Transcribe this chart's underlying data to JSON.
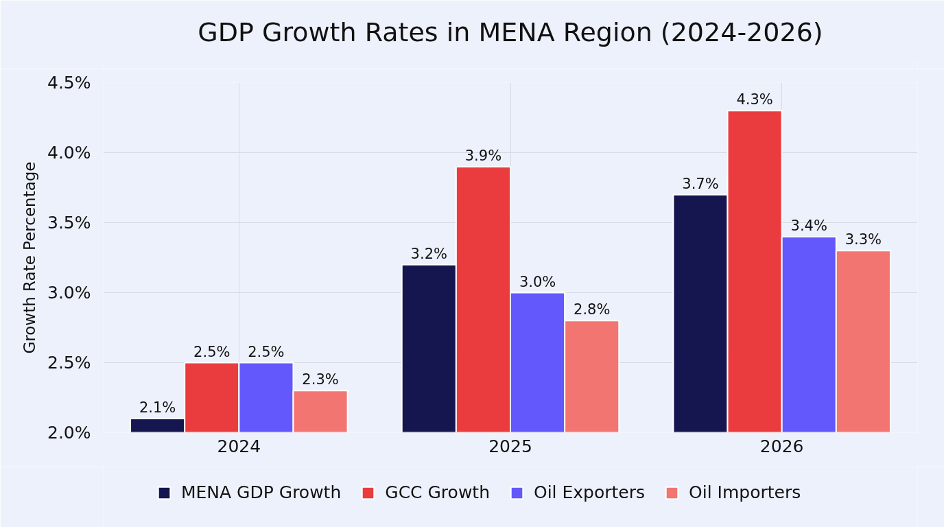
{
  "chart_data": {
    "type": "bar",
    "title": "GDP Growth Rates in MENA Region (2024-2026)",
    "ylabel": "Growth Rate Percentage",
    "categories": [
      "2024",
      "2025",
      "2026"
    ],
    "series": [
      {
        "name": "MENA GDP Growth",
        "color": "#151550",
        "values": [
          2.1,
          3.2,
          3.7
        ],
        "value_labels": [
          "2.1%",
          "3.2%",
          "3.7%"
        ]
      },
      {
        "name": "GCC Growth",
        "color": "#ea3c3f",
        "values": [
          2.5,
          3.9,
          4.3
        ],
        "value_labels": [
          "2.5%",
          "3.9%",
          "4.3%"
        ]
      },
      {
        "name": "Oil Exporters",
        "color": "#6258fc",
        "values": [
          2.5,
          3.0,
          3.4
        ],
        "value_labels": [
          "2.5%",
          "3.0%",
          "3.4%"
        ]
      },
      {
        "name": "Oil Importers",
        "color": "#f27572",
        "values": [
          2.3,
          2.8,
          3.3
        ],
        "value_labels": [
          "2.3%",
          "2.8%",
          "3.3%"
        ]
      }
    ],
    "ylim": [
      2.0,
      4.5
    ],
    "yticks": [
      {
        "value": 2.0,
        "label": "2.0%"
      },
      {
        "value": 2.5,
        "label": "2.5%"
      },
      {
        "value": 3.0,
        "label": "3.0%"
      },
      {
        "value": 3.5,
        "label": "3.5%"
      },
      {
        "value": 4.0,
        "label": "4.0%"
      },
      {
        "value": 4.5,
        "label": "4.5%"
      }
    ],
    "grid": true,
    "legend": "bottom"
  }
}
